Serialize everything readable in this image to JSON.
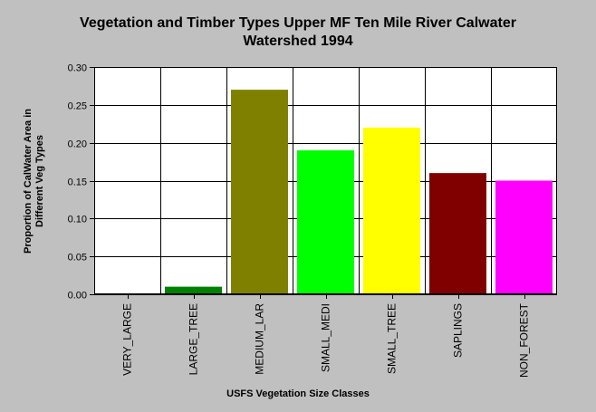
{
  "chart_data": {
    "type": "bar",
    "title_line1": "Vegetation and Timber Types Upper MF Ten Mile River Calwater",
    "title_line2": "Watershed 1994",
    "ylabel_line1": "Proportion of CalWater Area in",
    "ylabel_line2": "Different Veg Types",
    "xlabel": "USFS Vegetation Size Classes",
    "categories": [
      "VERY_LARGE",
      "LARGE_TREE",
      "MEDIUM_LAR",
      "SMALL_MEDI",
      "SMALL_TREE",
      "SAPLINGS",
      "NON_FOREST"
    ],
    "values": [
      0.0,
      0.01,
      0.27,
      0.19,
      0.22,
      0.16,
      0.15
    ],
    "colors": [
      "#008000",
      "#008000",
      "#808000",
      "#00ff00",
      "#ffff00",
      "#800000",
      "#ff00ff"
    ],
    "ylim": [
      0,
      0.3
    ],
    "yticks": [
      0.0,
      0.05,
      0.1,
      0.15,
      0.2,
      0.25,
      0.3
    ],
    "ytick_labels": [
      "0.00",
      "0.05",
      "0.10",
      "0.15",
      "0.20",
      "0.25",
      "0.30"
    ],
    "grid": true,
    "plot_background": "#ffffff",
    "page_background": "#c0c0c0"
  }
}
